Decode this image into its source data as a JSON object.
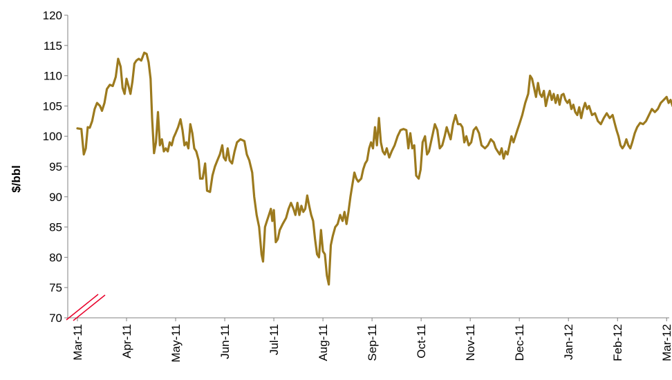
{
  "chart_data": {
    "type": "line",
    "title": "",
    "xlabel": "",
    "ylabel": "$/bbl",
    "ylim": [
      70,
      120
    ],
    "yticks": [
      "70",
      "75",
      "80",
      "85",
      "90",
      "95",
      "100",
      "105",
      "110",
      "115",
      "120"
    ],
    "xticks": [
      "Mar-11",
      "Apr-11",
      "May-11",
      "Jun-11",
      "Jul-11",
      "Aug-11",
      "Sep-11",
      "Oct-11",
      "Nov-11",
      "Dec-11",
      "Jan-12",
      "Feb-12",
      "Mar-12"
    ],
    "axis_break": true,
    "grid": false,
    "legend": "none",
    "colors": {
      "line": "#9C7A1E",
      "axis": "#808080",
      "break_marker": "#E8002A"
    },
    "series": [
      {
        "values": [
          [
            0.0,
            101.3
          ],
          [
            0.08,
            101.2
          ],
          [
            0.13,
            97.0
          ],
          [
            0.17,
            98.0
          ],
          [
            0.21,
            101.5
          ],
          [
            0.25,
            101.4
          ],
          [
            0.3,
            102.5
          ],
          [
            0.35,
            104.5
          ],
          [
            0.4,
            105.5
          ],
          [
            0.46,
            105.0
          ],
          [
            0.5,
            104.2
          ],
          [
            0.55,
            105.5
          ],
          [
            0.6,
            107.8
          ],
          [
            0.66,
            108.5
          ],
          [
            0.72,
            108.3
          ],
          [
            0.78,
            109.8
          ],
          [
            0.83,
            112.8
          ],
          [
            0.88,
            111.5
          ],
          [
            0.92,
            108.0
          ],
          [
            0.96,
            107.0
          ],
          [
            1.0,
            109.5
          ],
          [
            1.04,
            108.3
          ],
          [
            1.08,
            107.0
          ],
          [
            1.12,
            109.0
          ],
          [
            1.16,
            112.0
          ],
          [
            1.2,
            112.5
          ],
          [
            1.25,
            112.8
          ],
          [
            1.3,
            112.5
          ],
          [
            1.36,
            113.8
          ],
          [
            1.41,
            113.6
          ],
          [
            1.45,
            112.2
          ],
          [
            1.49,
            109.5
          ],
          [
            1.52,
            103.0
          ],
          [
            1.56,
            97.2
          ],
          [
            1.6,
            99.0
          ],
          [
            1.64,
            104.0
          ],
          [
            1.68,
            98.5
          ],
          [
            1.72,
            99.5
          ],
          [
            1.76,
            97.5
          ],
          [
            1.8,
            98.0
          ],
          [
            1.84,
            97.5
          ],
          [
            1.88,
            99.0
          ],
          [
            1.92,
            98.5
          ],
          [
            1.96,
            99.8
          ],
          [
            2.0,
            100.5
          ],
          [
            2.05,
            101.5
          ],
          [
            2.1,
            102.8
          ],
          [
            2.14,
            101.0
          ],
          [
            2.18,
            98.5
          ],
          [
            2.22,
            99.0
          ],
          [
            2.26,
            98.0
          ],
          [
            2.3,
            102.0
          ],
          [
            2.34,
            100.5
          ],
          [
            2.38,
            98.0
          ],
          [
            2.42,
            97.5
          ],
          [
            2.47,
            96.0
          ],
          [
            2.5,
            93.0
          ],
          [
            2.55,
            93.0
          ],
          [
            2.6,
            95.5
          ],
          [
            2.64,
            91.0
          ],
          [
            2.7,
            90.8
          ],
          [
            2.75,
            93.5
          ],
          [
            2.8,
            95.0
          ],
          [
            2.85,
            96.0
          ],
          [
            2.9,
            97.0
          ],
          [
            2.95,
            98.5
          ],
          [
            2.98,
            96.5
          ],
          [
            3.02,
            96.0
          ],
          [
            3.06,
            98.0
          ],
          [
            3.1,
            96.0
          ],
          [
            3.15,
            95.5
          ],
          [
            3.2,
            97.5
          ],
          [
            3.25,
            99.0
          ],
          [
            3.32,
            99.5
          ],
          [
            3.4,
            99.2
          ],
          [
            3.45,
            97.0
          ],
          [
            3.5,
            96.0
          ],
          [
            3.56,
            94.0
          ],
          [
            3.6,
            90.0
          ],
          [
            3.65,
            87.0
          ],
          [
            3.7,
            85.0
          ],
          [
            3.75,
            80.5
          ],
          [
            3.78,
            79.3
          ],
          [
            3.82,
            85.0
          ],
          [
            3.86,
            86.0
          ],
          [
            3.9,
            87.0
          ],
          [
            3.94,
            88.0
          ],
          [
            3.97,
            86.0
          ],
          [
            4.0,
            87.8
          ],
          [
            4.04,
            82.5
          ],
          [
            4.08,
            83.0
          ],
          [
            4.12,
            84.5
          ],
          [
            4.18,
            85.5
          ],
          [
            4.25,
            86.5
          ],
          [
            4.3,
            88.0
          ],
          [
            4.35,
            89.0
          ],
          [
            4.4,
            88.0
          ],
          [
            4.44,
            87.0
          ],
          [
            4.48,
            89.0
          ],
          [
            4.52,
            87.0
          ],
          [
            4.56,
            88.5
          ],
          [
            4.6,
            87.5
          ],
          [
            4.64,
            88.0
          ],
          [
            4.68,
            90.2
          ],
          [
            4.72,
            88.5
          ],
          [
            4.76,
            87.0
          ],
          [
            4.8,
            86.0
          ],
          [
            4.84,
            83.0
          ],
          [
            4.88,
            80.5
          ],
          [
            4.92,
            80.0
          ],
          [
            4.96,
            84.5
          ],
          [
            5.0,
            81.0
          ],
          [
            5.04,
            80.5
          ],
          [
            5.08,
            77.0
          ],
          [
            5.12,
            75.5
          ],
          [
            5.16,
            82.0
          ],
          [
            5.2,
            83.5
          ],
          [
            5.25,
            85.0
          ],
          [
            5.3,
            85.5
          ],
          [
            5.35,
            87.0
          ],
          [
            5.4,
            86.0
          ],
          [
            5.44,
            87.5
          ],
          [
            5.48,
            85.5
          ],
          [
            5.52,
            87.5
          ],
          [
            5.56,
            90.0
          ],
          [
            5.6,
            92.0
          ],
          [
            5.64,
            94.0
          ],
          [
            5.68,
            93.0
          ],
          [
            5.72,
            92.5
          ],
          [
            5.78,
            93.0
          ],
          [
            5.82,
            94.5
          ],
          [
            5.86,
            95.5
          ],
          [
            5.9,
            96.0
          ],
          [
            5.94,
            98.0
          ],
          [
            5.98,
            99.0
          ],
          [
            6.02,
            98.0
          ],
          [
            6.06,
            101.5
          ],
          [
            6.1,
            98.5
          ],
          [
            6.14,
            103.0
          ],
          [
            6.18,
            99.0
          ],
          [
            6.22,
            97.5
          ],
          [
            6.26,
            97.0
          ],
          [
            6.3,
            98.0
          ],
          [
            6.35,
            96.5
          ],
          [
            6.4,
            97.5
          ],
          [
            6.46,
            98.5
          ],
          [
            6.52,
            100.0
          ],
          [
            6.58,
            101.0
          ],
          [
            6.64,
            101.2
          ],
          [
            6.7,
            101.0
          ],
          [
            6.74,
            98.0
          ],
          [
            6.78,
            100.5
          ],
          [
            6.82,
            98.0
          ],
          [
            6.86,
            98.5
          ],
          [
            6.9,
            93.5
          ],
          [
            6.95,
            93.0
          ],
          [
            6.99,
            94.5
          ],
          [
            7.03,
            99.0
          ],
          [
            7.08,
            100.0
          ],
          [
            7.12,
            97.0
          ],
          [
            7.16,
            97.5
          ],
          [
            7.2,
            99.0
          ],
          [
            7.24,
            100.5
          ],
          [
            7.28,
            102.0
          ],
          [
            7.33,
            101.0
          ],
          [
            7.38,
            98.0
          ],
          [
            7.43,
            98.5
          ],
          [
            7.48,
            100.0
          ],
          [
            7.52,
            101.5
          ],
          [
            7.56,
            100.5
          ],
          [
            7.6,
            99.5
          ],
          [
            7.65,
            102.0
          ],
          [
            7.7,
            103.5
          ],
          [
            7.75,
            102.0
          ],
          [
            7.8,
            102.0
          ],
          [
            7.84,
            101.5
          ],
          [
            7.88,
            99.0
          ],
          [
            7.92,
            100.0
          ],
          [
            7.97,
            98.5
          ],
          [
            8.02,
            99.0
          ],
          [
            8.07,
            101.0
          ],
          [
            8.12,
            101.5
          ],
          [
            8.18,
            100.5
          ],
          [
            8.23,
            98.5
          ],
          [
            8.3,
            98.0
          ],
          [
            8.36,
            98.5
          ],
          [
            8.42,
            99.5
          ],
          [
            8.48,
            99.0
          ],
          [
            8.52,
            98.0
          ],
          [
            8.56,
            97.5
          ],
          [
            8.6,
            97.0
          ],
          [
            8.64,
            98.0
          ],
          [
            8.68,
            96.3
          ],
          [
            8.72,
            97.5
          ],
          [
            8.76,
            97.0
          ],
          [
            8.8,
            98.5
          ],
          [
            8.84,
            100.0
          ],
          [
            8.88,
            99.0
          ],
          [
            8.92,
            100.0
          ],
          [
            8.96,
            101.0
          ],
          [
            9.0,
            102.0
          ],
          [
            9.06,
            103.5
          ],
          [
            9.12,
            105.5
          ],
          [
            9.18,
            107.0
          ],
          [
            9.22,
            110.0
          ],
          [
            9.26,
            109.5
          ],
          [
            9.3,
            108.0
          ],
          [
            9.34,
            106.5
          ],
          [
            9.38,
            108.8
          ],
          [
            9.42,
            107.0
          ],
          [
            9.46,
            106.5
          ],
          [
            9.5,
            107.5
          ],
          [
            9.54,
            105.0
          ],
          [
            9.58,
            106.5
          ],
          [
            9.62,
            107.5
          ],
          [
            9.66,
            106.0
          ],
          [
            9.7,
            107.0
          ],
          [
            9.74,
            105.5
          ],
          [
            9.78,
            106.8
          ],
          [
            9.82,
            105.2
          ],
          [
            9.86,
            106.8
          ],
          [
            9.9,
            107.0
          ],
          [
            9.94,
            106.0
          ],
          [
            9.98,
            105.5
          ],
          [
            10.02,
            106.0
          ],
          [
            10.06,
            104.5
          ],
          [
            10.1,
            105.2
          ],
          [
            10.14,
            104.0
          ],
          [
            10.18,
            103.5
          ],
          [
            10.22,
            104.8
          ],
          [
            10.26,
            103.0
          ],
          [
            10.3,
            104.5
          ],
          [
            10.34,
            105.5
          ],
          [
            10.38,
            104.5
          ],
          [
            10.42,
            105.0
          ],
          [
            10.48,
            103.5
          ],
          [
            10.54,
            103.8
          ],
          [
            10.6,
            102.5
          ],
          [
            10.66,
            102.0
          ],
          [
            10.72,
            103.0
          ],
          [
            10.78,
            103.8
          ],
          [
            10.84,
            103.0
          ],
          [
            10.9,
            103.5
          ],
          [
            10.94,
            102.2
          ],
          [
            10.98,
            101.0
          ],
          [
            11.02,
            100.0
          ],
          [
            11.06,
            98.5
          ],
          [
            11.1,
            98.0
          ],
          [
            11.14,
            98.5
          ],
          [
            11.18,
            99.5
          ],
          [
            11.22,
            98.5
          ],
          [
            11.26,
            98.0
          ],
          [
            11.3,
            99.0
          ],
          [
            11.35,
            100.5
          ],
          [
            11.4,
            101.5
          ],
          [
            11.46,
            102.2
          ],
          [
            11.52,
            102.0
          ],
          [
            11.58,
            102.5
          ],
          [
            11.64,
            103.5
          ],
          [
            11.7,
            104.5
          ],
          [
            11.76,
            104.0
          ],
          [
            11.82,
            104.5
          ],
          [
            11.88,
            105.5
          ],
          [
            11.94,
            106.0
          ],
          [
            12.0,
            106.5
          ],
          [
            12.04,
            105.5
          ],
          [
            12.08,
            106.0
          ],
          [
            12.12,
            105.0
          ],
          [
            12.16,
            106.0
          ],
          [
            12.2,
            107.0
          ]
        ]
      }
    ]
  }
}
